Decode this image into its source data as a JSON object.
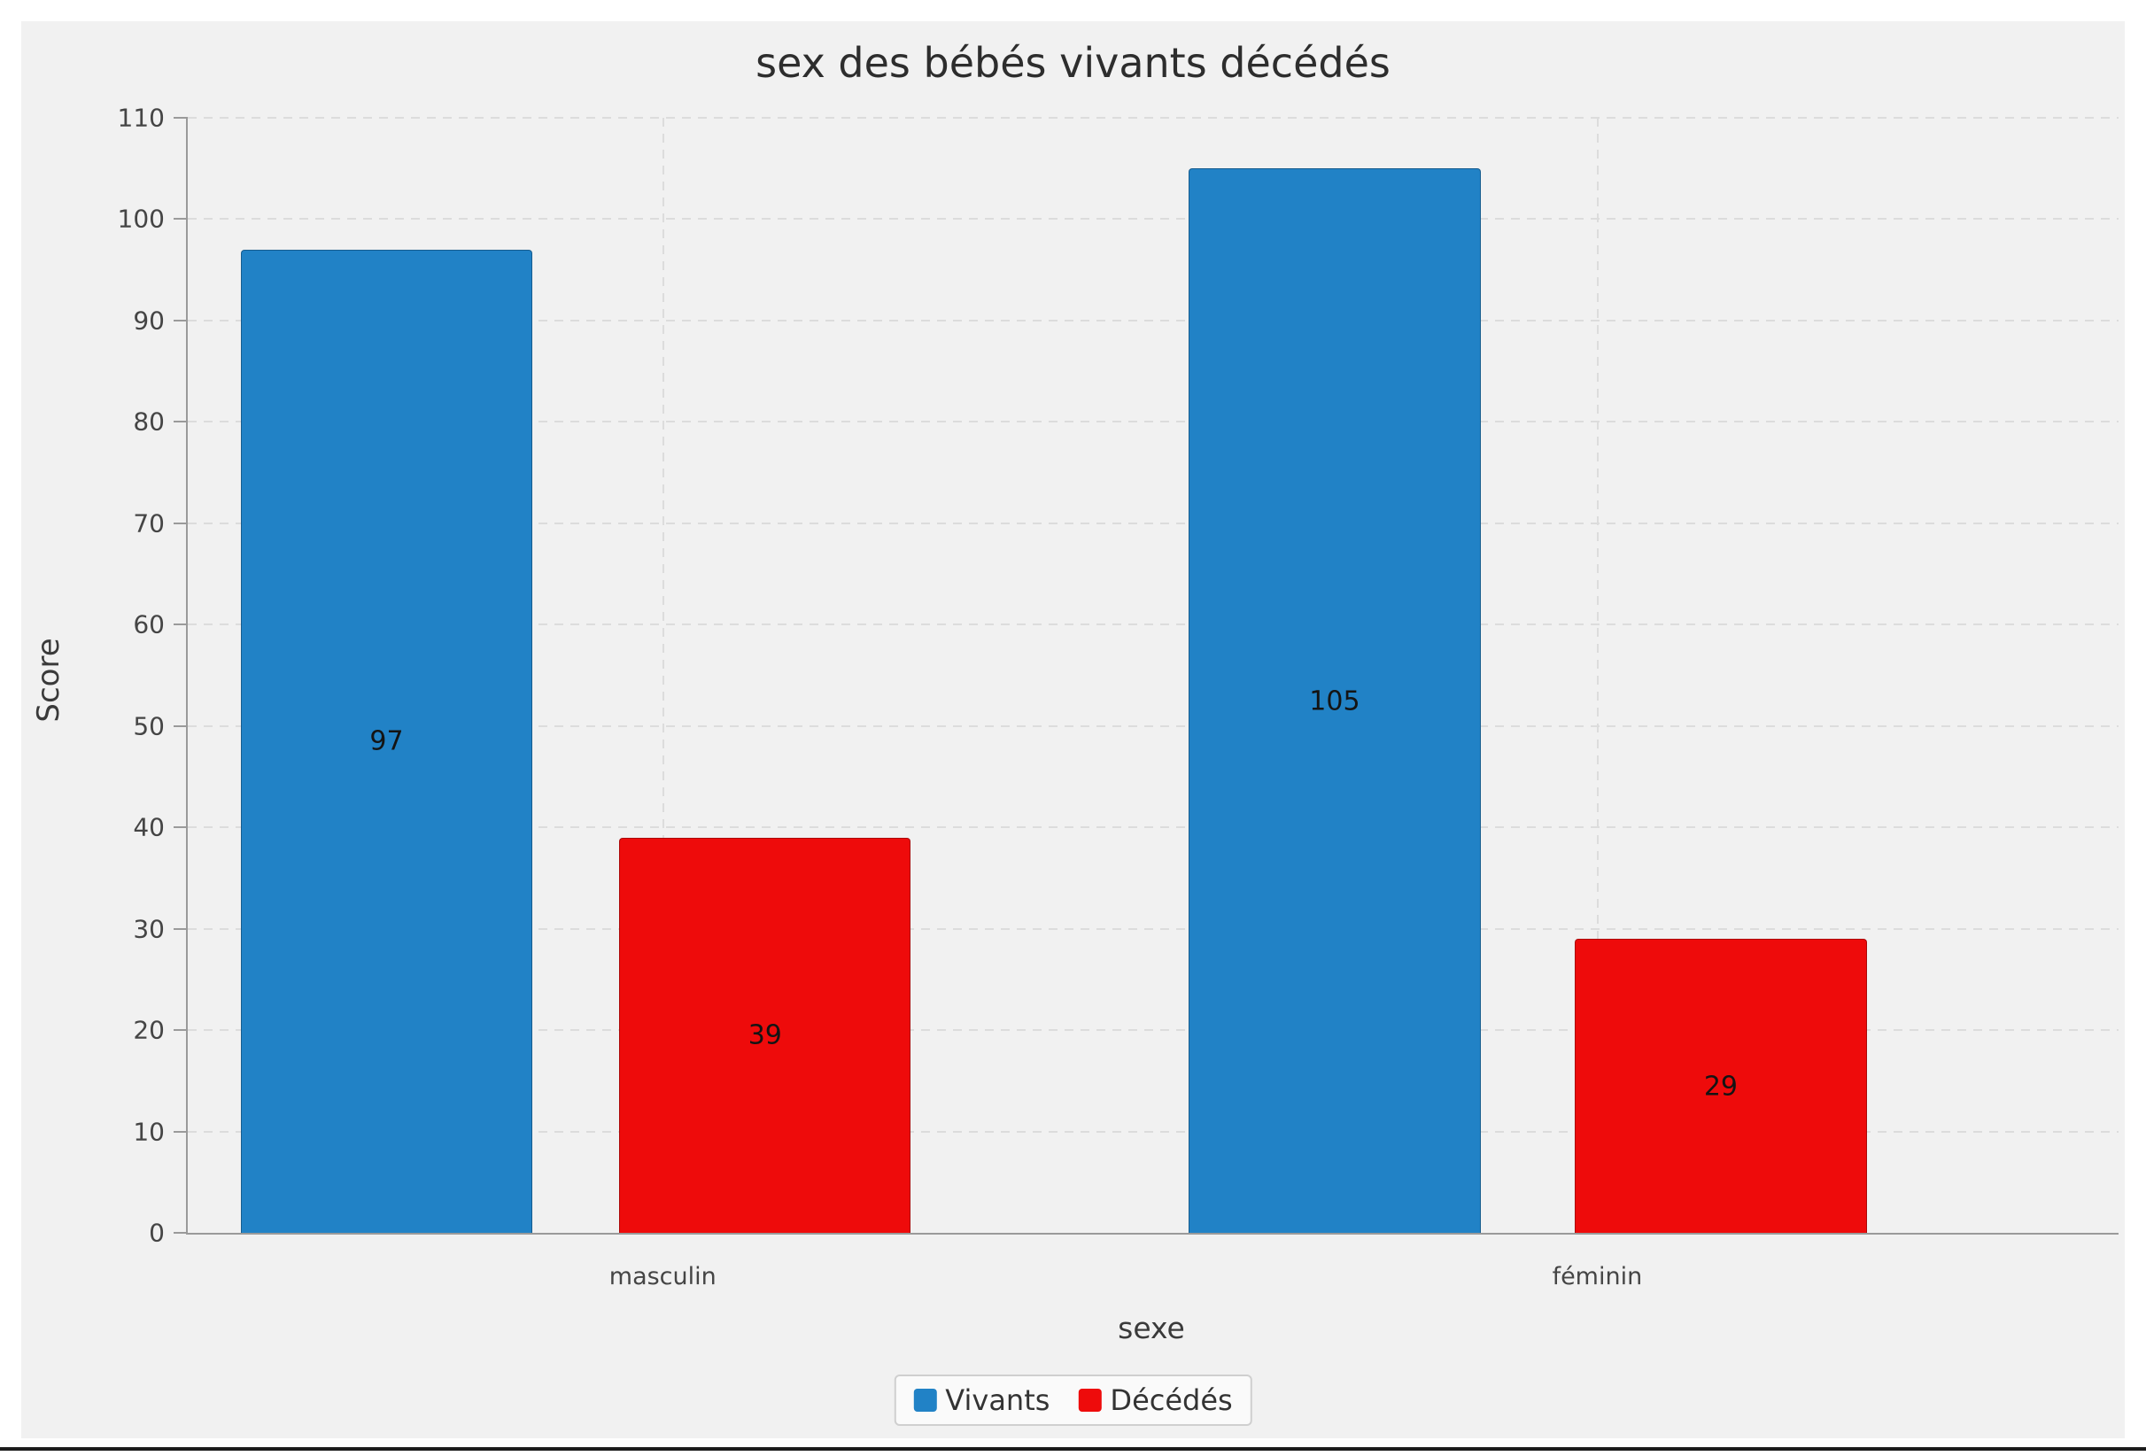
{
  "chart_data": {
    "type": "bar",
    "title": "sex des bébés vivants décédés",
    "xlabel": "sexe",
    "ylabel": "Score",
    "categories": [
      "masculin",
      "féminin"
    ],
    "series": [
      {
        "name": "Vivants",
        "color": "#2182c6",
        "values": [
          97,
          105
        ]
      },
      {
        "name": "Décédés",
        "color": "#ee0b0b",
        "values": [
          39,
          29
        ]
      }
    ],
    "ylim": [
      0,
      110
    ],
    "ytick_step": 10,
    "yticks": [
      0,
      10,
      20,
      30,
      40,
      50,
      60,
      70,
      80,
      90,
      100,
      110
    ],
    "grid": "dashed",
    "legend_position": "bottom",
    "value_labels": [
      97,
      39,
      105,
      29
    ]
  }
}
